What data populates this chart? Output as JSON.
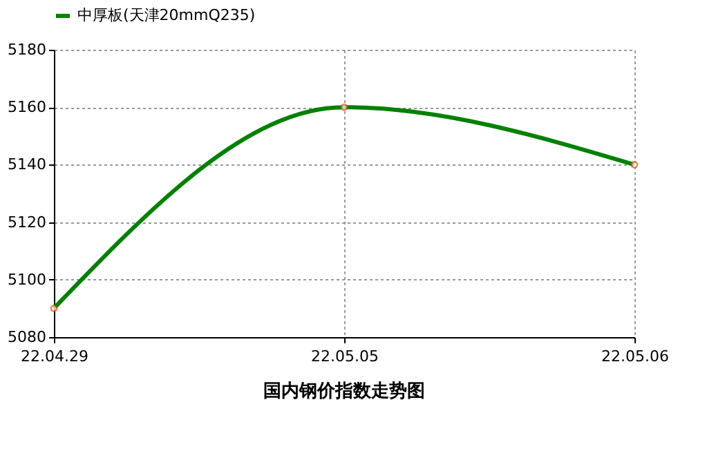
{
  "chart_data": {
    "type": "line",
    "title": "国内钢价指数走势图",
    "categories": [
      "22.04.29",
      "22.05.05",
      "22.05.06"
    ],
    "series": [
      {
        "name": "中厚板(天津20mmQ235)",
        "color": "#008000",
        "values": [
          5090,
          5160,
          5140
        ]
      }
    ],
    "ylim": [
      5080,
      5180
    ],
    "yticks": [
      5080,
      5100,
      5120,
      5140,
      5160,
      5180
    ],
    "grid": true,
    "legend": "top",
    "marker": "circle",
    "line_style": "solid"
  }
}
